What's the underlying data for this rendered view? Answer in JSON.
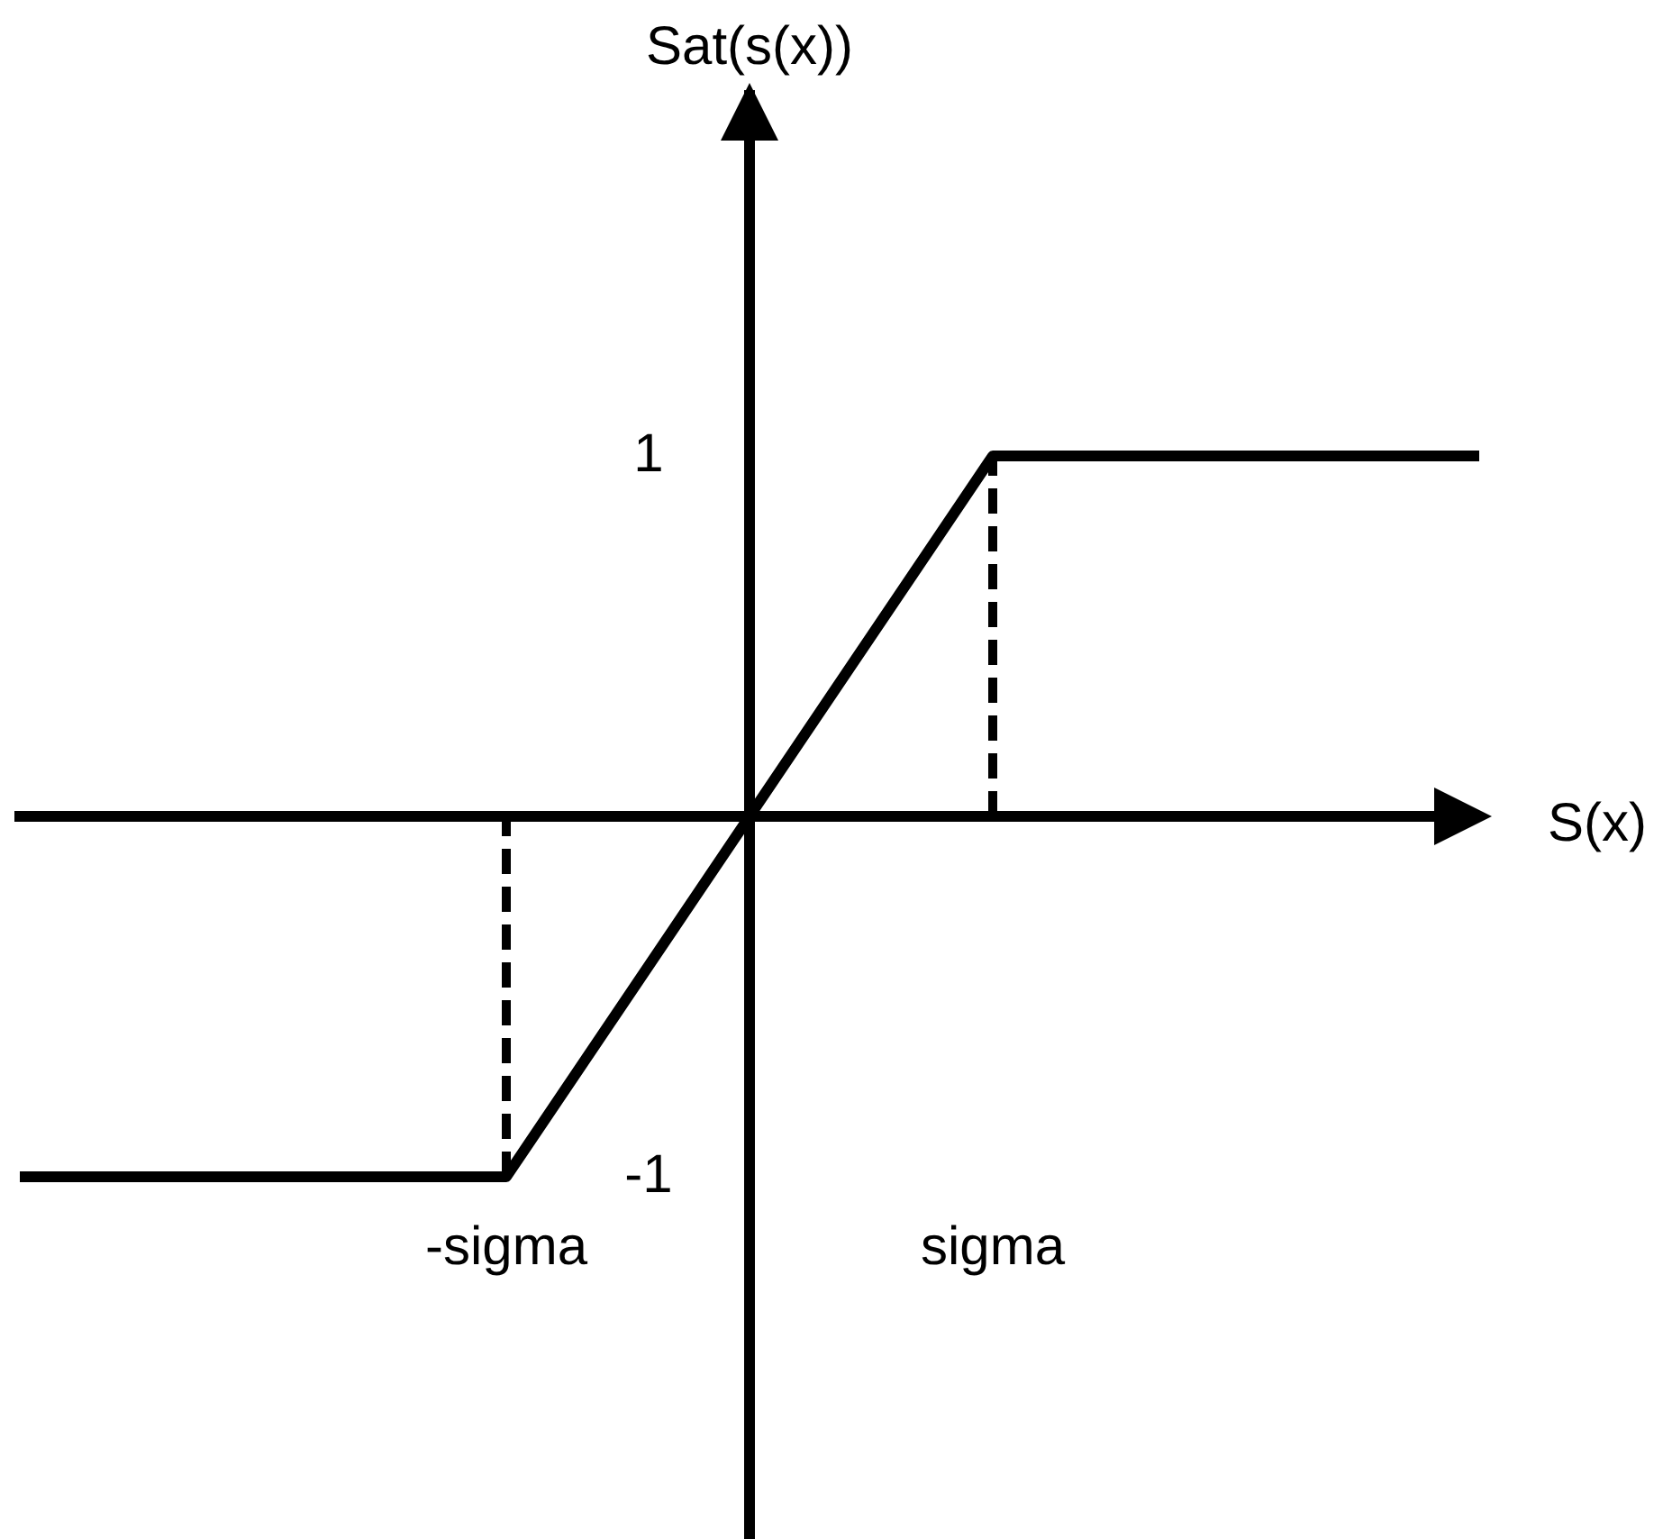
{
  "chart_data": {
    "type": "line",
    "xlabel": "S(x)",
    "ylabel": "Sat(s(x))",
    "categories": [
      null,
      "-sigma",
      "sigma",
      null
    ],
    "ylim": [
      -2,
      2
    ],
    "yticks": [
      -1,
      1
    ],
    "series": [
      {
        "color": "#000000",
        "values": [
          -1,
          -1,
          1,
          1
        ]
      },
      {
        "color": "#000000",
        "x": [
          "-sigma",
          "-sigma"
        ],
        "values": [
          -1,
          0
        ],
        "line_style": "dashed"
      },
      {
        "color": "#000000",
        "x": [
          "sigma",
          "sigma"
        ],
        "values": [
          0,
          1
        ],
        "line_style": "dashed"
      }
    ]
  }
}
